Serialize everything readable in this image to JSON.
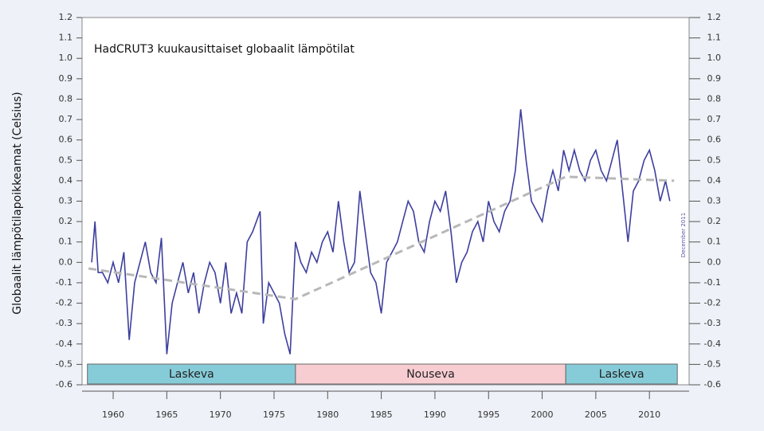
{
  "chart_data": {
    "type": "line",
    "title": "HadCRUT3 kuukausittaiset globaalit lämpötilat",
    "y_label": "Globaalit lämpötilapoikkeamat (Celsius)",
    "annotation": "December 2011",
    "color": "#3d3f9e",
    "x": [
      1958.0,
      1958.3,
      1958.6,
      1959.0,
      1959.5,
      1960.0,
      1960.5,
      1961.0,
      1961.5,
      1962.0,
      1962.5,
      1963.0,
      1963.5,
      1964.0,
      1964.5,
      1965.0,
      1965.5,
      1966.0,
      1966.5,
      1967.0,
      1967.5,
      1968.0,
      1968.5,
      1969.0,
      1969.5,
      1970.0,
      1970.5,
      1971.0,
      1971.5,
      1972.0,
      1972.5,
      1973.0,
      1973.7,
      1974.0,
      1974.5,
      1975.0,
      1975.5,
      1976.0,
      1976.5,
      1977.0,
      1977.5,
      1978.0,
      1978.5,
      1979.0,
      1979.5,
      1980.0,
      1980.5,
      1981.0,
      1981.5,
      1982.0,
      1982.5,
      1983.0,
      1983.5,
      1984.0,
      1984.5,
      1985.0,
      1985.5,
      1986.0,
      1986.5,
      1987.0,
      1987.5,
      1988.0,
      1988.5,
      1989.0,
      1989.5,
      1990.0,
      1990.5,
      1991.0,
      1991.5,
      1992.0,
      1992.5,
      1993.0,
      1993.5,
      1994.0,
      1994.5,
      1995.0,
      1995.5,
      1996.0,
      1996.5,
      1997.0,
      1997.5,
      1998.0,
      1998.5,
      1999.0,
      1999.5,
      2000.0,
      2000.5,
      2001.0,
      2001.5,
      2002.0,
      2002.5,
      2003.0,
      2003.5,
      2004.0,
      2004.5,
      2005.0,
      2005.5,
      2006.0,
      2006.5,
      2007.0,
      2007.5,
      2008.0,
      2008.5,
      2009.0,
      2009.5,
      2010.0,
      2010.5,
      2011.0,
      2011.5,
      2011.9
    ],
    "values": [
      0.0,
      0.2,
      -0.05,
      -0.05,
      -0.1,
      0.0,
      -0.1,
      0.05,
      -0.38,
      -0.1,
      0.0,
      0.1,
      -0.05,
      -0.1,
      0.12,
      -0.45,
      -0.2,
      -0.1,
      0.0,
      -0.15,
      -0.05,
      -0.25,
      -0.1,
      0.0,
      -0.05,
      -0.2,
      0.0,
      -0.25,
      -0.15,
      -0.25,
      0.1,
      0.15,
      0.25,
      -0.3,
      -0.1,
      -0.15,
      -0.2,
      -0.35,
      -0.45,
      0.1,
      0.0,
      -0.05,
      0.05,
      0.0,
      0.1,
      0.15,
      0.05,
      0.3,
      0.1,
      -0.05,
      0.0,
      0.35,
      0.15,
      -0.05,
      -0.1,
      -0.25,
      0.0,
      0.05,
      0.1,
      0.2,
      0.3,
      0.25,
      0.1,
      0.05,
      0.2,
      0.3,
      0.25,
      0.35,
      0.15,
      -0.1,
      0.0,
      0.05,
      0.15,
      0.2,
      0.1,
      0.3,
      0.2,
      0.15,
      0.25,
      0.3,
      0.45,
      0.75,
      0.5,
      0.3,
      0.25,
      0.2,
      0.35,
      0.45,
      0.35,
      0.55,
      0.45,
      0.55,
      0.45,
      0.4,
      0.5,
      0.55,
      0.45,
      0.4,
      0.5,
      0.6,
      0.35,
      0.1,
      0.35,
      0.4,
      0.5,
      0.55,
      0.45,
      0.3,
      0.4,
      0.3
    ],
    "trend": {
      "color": "#b8b8b8",
      "x": [
        1957.7,
        1977.0,
        2002.2,
        2012.3
      ],
      "values": [
        -0.03,
        -0.18,
        0.42,
        0.4
      ]
    },
    "bands": [
      {
        "label": "Laskeva",
        "start": 1957.6,
        "end": 1977.0,
        "color": "#86ccd8"
      },
      {
        "label": "Nouseva",
        "start": 1977.0,
        "end": 2002.2,
        "color": "#f8cdd2"
      },
      {
        "label": "Laskeva",
        "start": 2002.2,
        "end": 2012.6,
        "color": "#86ccd8"
      }
    ],
    "xlim": [
      1957.1,
      2013.7
    ],
    "xticks": [
      1960,
      1965,
      1970,
      1975,
      1980,
      1985,
      1990,
      1995,
      2000,
      2005,
      2010
    ],
    "ylim": [
      -0.6,
      1.2
    ],
    "yticks": [
      1.2,
      1.1,
      {
        "value": 1,
        "label": "1.0"
      },
      0.9,
      0.8,
      0.7,
      0.6,
      0.5,
      0.4,
      0.3,
      0.2,
      0.1,
      {
        "value": 0,
        "label": "0.0"
      },
      -0.1,
      -0.2,
      -0.3,
      -0.4,
      -0.5,
      -0.6
    ],
    "y2lim": [
      -0.6,
      1.2
    ],
    "y2ticks": [
      1.2,
      1.1,
      {
        "value": 1,
        "label": "1.0"
      },
      0.9,
      0.8,
      0.7,
      0.6,
      0.5,
      0.4,
      0.3,
      0.2,
      0.1,
      {
        "value": 0,
        "label": "0.0"
      },
      -0.1,
      -0.2,
      -0.3,
      -0.4,
      -0.5,
      -0.6
    ]
  }
}
